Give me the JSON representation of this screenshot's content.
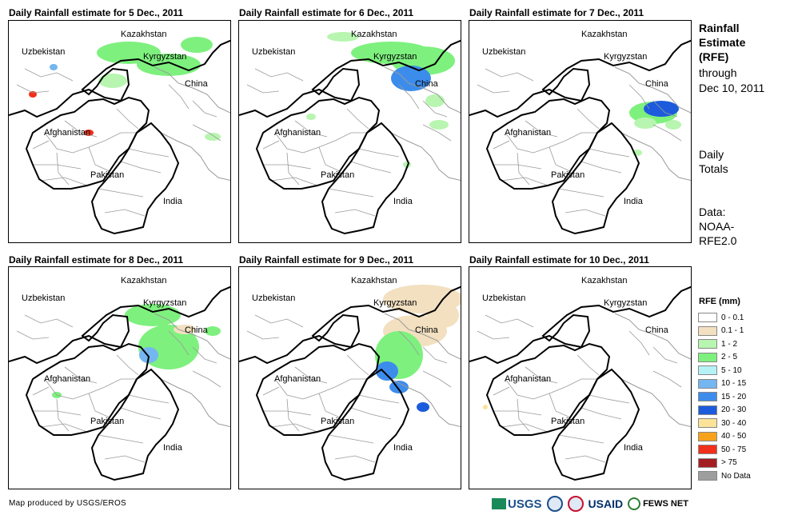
{
  "panels": [
    {
      "title": "Daily Rainfall estimate for 5 Dec., 2011"
    },
    {
      "title": "Daily Rainfall estimate for 6 Dec., 2011"
    },
    {
      "title": "Daily Rainfall estimate for 7 Dec., 2011"
    },
    {
      "title": "Daily Rainfall estimate for 8 Dec., 2011"
    },
    {
      "title": "Daily Rainfall estimate for 9 Dec., 2011"
    },
    {
      "title": "Daily Rainfall estimate for 10 Dec., 2011"
    }
  ],
  "labels": {
    "kazakhstan": "Kazakhstan",
    "uzbekistan": "Uzbekistan",
    "kyrgyzstan": "Kyrgyzstan",
    "china": "China",
    "afghanistan": "Afghanistan",
    "pakistan": "Pakistan",
    "india": "India"
  },
  "side": {
    "rfe_title_1": "Rainfall",
    "rfe_title_2": "Estimate",
    "rfe_title_3": "(RFE)",
    "through": "through",
    "through_date": "Dec 10, 2011",
    "daily_1": "Daily",
    "daily_2": "Totals",
    "data_1": "Data:",
    "data_2": "NOAA-",
    "data_3": "RFE2.0"
  },
  "legend": {
    "title": "RFE (mm)",
    "items": [
      {
        "label": "0 - 0.1",
        "color": "#ffffff"
      },
      {
        "label": "0.1 - 1",
        "color": "#f2e0c0"
      },
      {
        "label": "1 - 2",
        "color": "#b8f5b0"
      },
      {
        "label": "2 - 5",
        "color": "#7ef07e"
      },
      {
        "label": "5 - 10",
        "color": "#b5f2f6"
      },
      {
        "label": "10 - 15",
        "color": "#74b6f0"
      },
      {
        "label": "15 - 20",
        "color": "#3c8cec"
      },
      {
        "label": "20 - 30",
        "color": "#1c5bdc"
      },
      {
        "label": "30 - 40",
        "color": "#fbe39a"
      },
      {
        "label": "40 - 50",
        "color": "#f7a21a"
      },
      {
        "label": "50 - 75",
        "color": "#f0301a"
      },
      {
        "label": "> 75",
        "color": "#a31e22"
      },
      {
        "label": "No Data",
        "color": "#9e9e9e"
      }
    ]
  },
  "credit": "Map produced by USGS/EROS",
  "logos": {
    "usgs": "USGS",
    "usaid": "USAID",
    "fews": "FEWS NET"
  }
}
